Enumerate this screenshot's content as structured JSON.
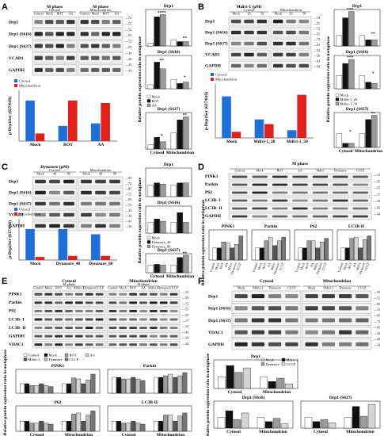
{
  "colors": {
    "black": "#111111",
    "gray": "#9b9b9b",
    "white": "#ffffff",
    "lightgray": "#d4d4d4",
    "blue": "#1f6fd6",
    "red": "#e0201c",
    "grid": "#333333"
  },
  "panels": [
    {
      "id": "A",
      "letter": "A",
      "blot": {
        "groups": [
          {
            "label": "M phase",
            "sublabel": "Cytosol",
            "lanes": [
              "Control",
              "Mock",
              "ROT",
              "AA"
            ]
          },
          {
            "label": "M phase",
            "sublabel": "Mitochondrion",
            "lanes": [
              "Control",
              "Mock",
              "ROT",
              "AA"
            ]
          }
        ],
        "rows": [
          "Drp1",
          "Drp1 (S616)",
          "Drp1 (S637)",
          "VCAD1",
          "GAPDH"
        ],
        "markers": [
          "72",
          "55",
          "72",
          "55",
          "72",
          "55",
          "34",
          "26",
          "43",
          "34"
        ]
      },
      "ratio": {
        "ylabel": "p-Drp1Ser (637/616)",
        "categories": [
          "Mock",
          "ROT",
          "AA"
        ],
        "series": [
          {
            "name": "Cytosol",
            "color": "blue",
            "values": [
              1.6,
              0.6,
              0.7
            ]
          },
          {
            "name": "Mitochondrion",
            "color": "red",
            "values": [
              0.3,
              1.6,
              1.5
            ]
          }
        ],
        "ymax": 2.0
      },
      "bars": {
        "ylabel": "Relative protein expression ratio in metaphase",
        "legend": [
          "Mock",
          "ROT",
          "AA"
        ],
        "groups": [
          "Cytosol",
          "Mitochondrion"
        ],
        "charts": [
          {
            "title": "Drp1",
            "values": [
              [
                0.4,
                4.0,
                4.3
              ],
              [
                0.8,
                0.6,
                0.6
              ]
            ],
            "ymax": 5,
            "marks": [
              "****",
              "**"
            ]
          },
          {
            "title": "Drp1 (S616)",
            "values": [
              [
                0.3,
                2.0,
                1.5
              ],
              [
                0.7,
                0.4,
                0.5
              ]
            ],
            "ymax": 2.5,
            "marks": [
              "**",
              "*"
            ]
          },
          {
            "title": "Drp1 (S637)",
            "values": [
              [
                0.3,
                0.8,
                0.5
              ],
              [
                1.1,
                2.0,
                2.2
              ]
            ],
            "ymax": 2.5,
            "marks": [
              "*",
              "**"
            ]
          }
        ]
      }
    },
    {
      "id": "B",
      "letter": "B",
      "blot": {
        "groups": [
          {
            "label": "Mdivi-1 (μM)",
            "sublabel": "Cytosol",
            "lanes": [
              "Mock",
              "20",
              "50"
            ]
          },
          {
            "label": "",
            "sublabel": "Mitochondrion",
            "lanes": [
              "Mock",
              "20",
              "50"
            ]
          }
        ],
        "rows": [
          "Drp1",
          "Drp1 (S616)",
          "Drp1 (S637)",
          "VCAD1",
          "GAPDH"
        ],
        "markers": [
          "72",
          "55",
          "72",
          "55",
          "72",
          "55",
          "34",
          "26",
          "43",
          "34"
        ]
      },
      "ratio": {
        "ylabel": "p-Drp1Ser (637/616)",
        "categories": [
          "Mock",
          "Mdivi-1_20",
          "Mdivi-1_50"
        ],
        "series": [
          {
            "name": "Cytosol",
            "color": "blue",
            "values": [
              2.7,
              1.2,
              0.5
            ]
          },
          {
            "name": "Mitochondrion",
            "color": "red",
            "values": [
              0.4,
              0.9,
              2.8
            ]
          }
        ],
        "ymax": 3.5
      },
      "bars": {
        "ylabel": "Relative protein expression ratio in metaphase",
        "legend": [
          "Mock",
          "Mdivi-1_20",
          "Mdivi-1_50"
        ],
        "groups": [
          "Cytosol",
          "Mitochondrion"
        ],
        "charts": [
          {
            "title": "Drp1",
            "values": [
              [
                1.0,
                2.7,
                3.3
              ],
              [
                1.0,
                0.6,
                0.6
              ]
            ],
            "ymax": 3.5,
            "marks": [
              "***",
              "**"
            ]
          },
          {
            "title": "Drp1 (S616)",
            "values": [
              [
                1.0,
                1.9,
                2.2
              ],
              [
                1.0,
                0.5,
                0.4
              ]
            ],
            "ymax": 2.5,
            "marks": [
              "***",
              "*"
            ]
          },
          {
            "title": "Drp1 (S637)",
            "values": [
              [
                1.0,
                0.3,
                0.3
              ],
              [
                1.0,
                2.0,
                2.3
              ]
            ],
            "ymax": 2.5,
            "marks": [
              "*",
              "**"
            ]
          }
        ]
      }
    },
    {
      "id": "C",
      "letter": "C",
      "blot": {
        "groups": [
          {
            "label": "Dynasore (μM)",
            "sublabel": "Cytosol",
            "lanes": [
              "Mock",
              "40",
              "80"
            ]
          },
          {
            "label": "",
            "sublabel": "Mitochondrion",
            "lanes": [
              "Mock",
              "40",
              "80"
            ]
          }
        ],
        "rows": [
          "Drp1",
          "Drp1 (S616)",
          "Drp1 (S637)",
          "VCAD1",
          "GAPDH"
        ],
        "markers": [
          "95",
          "72",
          "95",
          "72",
          "95",
          "72",
          "43",
          "34",
          "43",
          "34"
        ]
      },
      "ratio": {
        "ylabel": "p-Drp1Ser (637/616)",
        "categories": [
          "Mock",
          "Dynasore_40",
          "Dynasore_80"
        ],
        "series": [
          {
            "name": "Cytosol",
            "color": "blue",
            "values": [
              3.0,
              3.0,
              2.5
            ]
          },
          {
            "name": "Mitochondrion",
            "color": "red",
            "values": [
              0.3,
              0.4,
              0.4
            ]
          }
        ],
        "ymax": 4.0
      },
      "bars": {
        "ylabel": "Relative protein expression ratio in metaphase",
        "legend": [
          "Mock",
          "Dynasore_40",
          "Dynasore_80"
        ],
        "groups": [
          "Cytosol",
          "Mitochondrion"
        ],
        "charts": [
          {
            "title": "Drp1",
            "values": [
              [
                1.0,
                1.2,
                1.1
              ],
              [
                1.0,
                1.2,
                1.2
              ]
            ],
            "ymax": 2.5,
            "marks": [
              "",
              ""
            ]
          },
          {
            "title": "Drp1 (S616)",
            "values": [
              [
                1.0,
                1.3,
                1.1
              ],
              [
                1.0,
                1.9,
                1.0
              ]
            ],
            "ymax": 2.5,
            "marks": [
              "",
              ""
            ]
          },
          {
            "title": "Drp1 (S637)",
            "values": [
              [
                1.0,
                1.1,
                1.0
              ],
              [
                1.0,
                2.0,
                2.3
              ]
            ],
            "ymax": 2.5,
            "marks": [
              "",
              "**"
            ]
          }
        ]
      }
    },
    {
      "id": "D",
      "letter": "D",
      "blot": {
        "title": "M phase",
        "lanes": [
          "Control",
          "Mock",
          "ROT",
          "AA",
          "Mdivi",
          "Dynasore",
          "CCCP"
        ],
        "rows": [
          "PINK1",
          "Parkin",
          "P62",
          "LC3B- I",
          "LC3B- II",
          "GAPDH"
        ],
        "markers": [
          "72",
          "55",
          "55",
          "17",
          "10",
          "43",
          "34"
        ]
      },
      "bars": {
        "ylabel": "Relative protein expression ratio in metaphase",
        "legend": [
          "Control",
          "Mock",
          "ROT",
          "AA",
          "Mdivi",
          "Dynasore",
          "CCCP"
        ],
        "charts": [
          {
            "title": "PINK1",
            "values": [
              1.0,
              1.0,
              1.5,
              1.4,
              1.0,
              1.3,
              2.0
            ],
            "ymax": 2.5
          },
          {
            "title": "Parkin",
            "values": [
              1.0,
              1.0,
              1.6,
              1.9,
              1.2,
              1.6,
              1.9
            ],
            "ymax": 2.5
          },
          {
            "title": "P62",
            "values": [
              1.0,
              1.0,
              1.6,
              1.6,
              1.0,
              1.5,
              1.8
            ],
            "ymax": 2.5
          },
          {
            "title": "LC3B-II",
            "values": [
              1.0,
              1.0,
              1.8,
              1.9,
              1.0,
              1.7,
              2.0
            ],
            "ymax": 2.5
          }
        ]
      }
    },
    {
      "id": "E",
      "letter": "E",
      "blot": {
        "groups": [
          {
            "label": "Cytosol",
            "sublabel": "M phase",
            "lanes": [
              "Control",
              "Mock",
              "ROT",
              "AA",
              "Mdivi-1",
              "Dynasore",
              "CCCP"
            ]
          },
          {
            "label": "Mitochondrion",
            "sublabel": "M phase",
            "lanes": [
              "Control",
              "Mock",
              "ROT",
              "AA",
              "Mdivi-1",
              "Dynasore",
              "CCCP"
            ]
          }
        ],
        "rows": [
          "PINK1",
          "Parkin",
          "P62",
          "LC3B- I",
          "LC3B- II",
          "GAPDH",
          "VDAC1"
        ],
        "markers": [
          "72",
          "55",
          "72",
          "55",
          "55",
          "17",
          "10",
          "43",
          "34",
          "34"
        ]
      },
      "bars": {
        "ylabel": "Relative protein expression ratio in metaphase",
        "legend": [
          "Control",
          "Mock",
          "ROT",
          "AA",
          "Mdivi-1",
          "Dynasore",
          "CCCP"
        ],
        "groups": [
          "Cytosol",
          "Mitochondrion"
        ],
        "charts": [
          {
            "title": "PINK1",
            "values": [
              [
                1.0,
                1.0,
                0.8,
                0.8,
                1.0,
                0.8,
                0.7
              ],
              [
                1.0,
                1.0,
                1.6,
                1.5,
                1.0,
                1.4,
                2.0
              ]
            ],
            "ymax": 2.5
          },
          {
            "title": "Parkin",
            "values": [
              [
                1.0,
                1.0,
                0.9,
                0.9,
                1.0,
                0.9,
                0.8
              ],
              [
                1.0,
                1.0,
                1.1,
                1.2,
                1.0,
                1.1,
                1.3
              ]
            ],
            "ymax": 1.5
          },
          {
            "title": "P62",
            "values": [
              [
                1.0,
                1.0,
                0.8,
                0.8,
                1.0,
                0.8,
                0.7
              ],
              [
                1.0,
                1.0,
                1.7,
                1.8,
                1.0,
                1.6,
                2.0
              ]
            ],
            "ymax": 2.5
          },
          {
            "title": "LC3B-II",
            "values": [
              [
                1.0,
                1.0,
                0.8,
                0.8,
                1.0,
                0.8,
                0.7
              ],
              [
                1.0,
                1.0,
                1.6,
                1.6,
                1.0,
                1.5,
                1.8
              ]
            ],
            "ymax": 2.5
          }
        ]
      }
    },
    {
      "id": "F",
      "letter": "F",
      "blot": {
        "groups": [
          {
            "label": "Cytosol",
            "lanes": [
              "Mock",
              "Mdivi-1",
              "Dynasore",
              "CCCP"
            ]
          },
          {
            "label": "Mitochondrion",
            "lanes": [
              "Mock",
              "Mdivi-1",
              "Dynasore",
              "CCCP"
            ]
          }
        ],
        "rows": [
          "Drp1",
          "Drp1 (S616)",
          "Drp1 (S637)",
          "VDAC1",
          "GAPDH"
        ],
        "markers": [
          "95",
          "72",
          "95",
          "72",
          "95",
          "72",
          "43",
          "34",
          "43",
          "34"
        ]
      },
      "bars": {
        "ylabel": "Relative protein expression ratio in metaphase",
        "legend": [
          "Mock",
          "Mdivi-1",
          "Dynasore",
          "CCCP"
        ],
        "groups": [
          "Cytosol",
          "Mitochondrion"
        ],
        "charts": [
          {
            "title": "Drp1",
            "values": [
              [
                1.0,
                2.0,
                1.4,
                1.8
              ],
              [
                1.0,
                0.6,
                0.9,
                0.4
              ]
            ],
            "ymax": 2.5
          },
          {
            "title": "Drp1 (S616)",
            "values": [
              [
                1.0,
                1.6,
                0.8,
                1.4
              ],
              [
                1.0,
                0.6,
                0.9,
                0.4
              ]
            ],
            "ymax": 2.5
          },
          {
            "title": "Drp1 (S637)",
            "values": [
              [
                1.0,
                0.6,
                0.8,
                0.5
              ],
              [
                1.0,
                2.0,
                1.1,
                2.2
              ]
            ],
            "ymax": 2.5
          }
        ]
      }
    }
  ]
}
